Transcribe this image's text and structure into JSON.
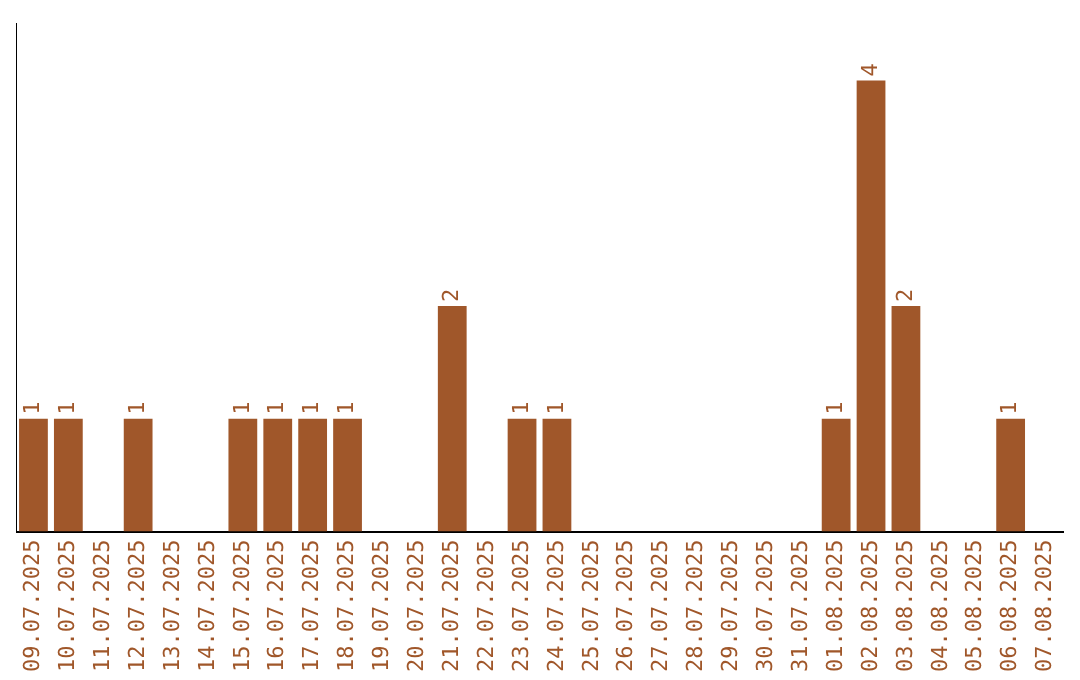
{
  "chart_data": {
    "type": "bar",
    "categories": [
      "09.07.2025",
      "10.07.2025",
      "11.07.2025",
      "12.07.2025",
      "13.07.2025",
      "14.07.2025",
      "15.07.2025",
      "16.07.2025",
      "17.07.2025",
      "18.07.2025",
      "19.07.2025",
      "20.07.2025",
      "21.07.2025",
      "22.07.2025",
      "23.07.2025",
      "24.07.2025",
      "25.07.2025",
      "26.07.2025",
      "27.07.2025",
      "28.07.2025",
      "29.07.2025",
      "30.07.2025",
      "31.07.2025",
      "01.08.2025",
      "02.08.2025",
      "03.08.2025",
      "04.08.2025",
      "05.08.2025",
      "06.08.2025",
      "07.08.2025"
    ],
    "values": [
      1,
      1,
      0,
      1,
      0,
      0,
      1,
      1,
      1,
      1,
      0,
      0,
      2,
      0,
      1,
      1,
      0,
      0,
      0,
      0,
      0,
      0,
      0,
      1,
      4,
      2,
      0,
      0,
      1,
      0
    ],
    "value_labels": [
      "1",
      "1",
      null,
      "1",
      null,
      null,
      "1",
      "1",
      "1",
      "1",
      null,
      null,
      "2",
      null,
      "1",
      "1",
      null,
      null,
      null,
      null,
      null,
      null,
      null,
      "1",
      "4",
      "2",
      null,
      null,
      "1",
      null
    ],
    "color": "#a0572a",
    "grid": false,
    "legend": false,
    "tick_labels": "x"
  }
}
